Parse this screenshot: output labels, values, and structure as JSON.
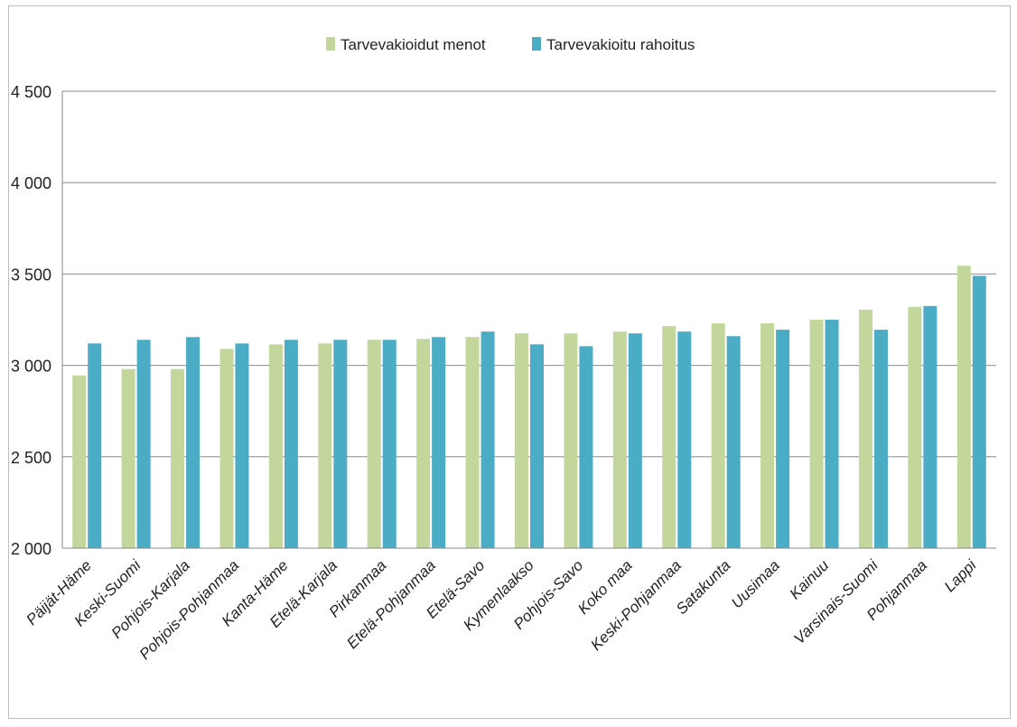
{
  "chart_data": {
    "type": "bar",
    "title": "",
    "xlabel": "",
    "ylabel": "",
    "ylim": [
      2000,
      4500
    ],
    "yticks": [
      2000,
      2500,
      3000,
      3500,
      4000,
      4500
    ],
    "ytick_labels": [
      "2 000",
      "2 500",
      "3 000",
      "3 500",
      "4 000",
      "4 500"
    ],
    "grid": true,
    "legend_position": "top-center",
    "categories": [
      "Päijät-Häme",
      "Keski-Suomi",
      "Pohjois-Karjala",
      "Pohjois-Pohjanmaa",
      "Kanta-Häme",
      "Etelä-Karjala",
      "Pirkanmaa",
      "Etelä-Pohjanmaa",
      "Etelä-Savo",
      "Kymenlaakso",
      "Pohjois-Savo",
      "Koko maa",
      "Keski-Pohjanmaa",
      "Satakunta",
      "Uusimaa",
      "Kainuu",
      "Varsinais-Suomi",
      "Pohjanmaa",
      "Lappi"
    ],
    "series": [
      {
        "name": "Tarvevakioidut menot",
        "color": "#c3d69b",
        "values": [
          2945,
          2980,
          2980,
          3090,
          3115,
          3120,
          3140,
          3145,
          3155,
          3175,
          3175,
          3185,
          3215,
          3230,
          3230,
          3250,
          3305,
          3320,
          3545
        ]
      },
      {
        "name": "Tarvevakioitu rahoitus",
        "color": "#4bacc6",
        "values": [
          3120,
          3140,
          3155,
          3120,
          3140,
          3140,
          3140,
          3155,
          3185,
          3115,
          3105,
          3175,
          3185,
          3160,
          3195,
          3250,
          3195,
          3325,
          3490
        ]
      }
    ]
  }
}
